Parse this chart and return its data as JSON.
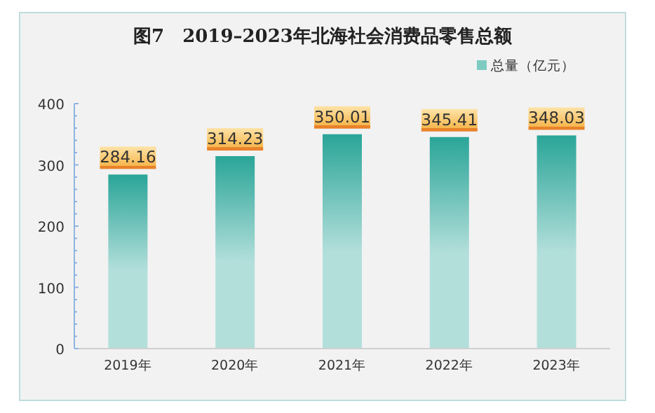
{
  "chart_data": {
    "type": "bar",
    "title": "图7　2019–2023年北海社会消费品零售总额",
    "categories": [
      "2019年",
      "2020年",
      "2021年",
      "2022年",
      "2023年"
    ],
    "series": [
      {
        "name": "总量（亿元）",
        "color": "#2aa598",
        "values": [
          284.16,
          314.23,
          350.01,
          345.41,
          348.03
        ]
      }
    ],
    "ylim": [
      0,
      400
    ],
    "yticks": [
      0,
      {
        "value": 20,
        "label": null
      },
      {
        "value": 40,
        "label": null
      },
      {
        "value": 60,
        "label": null
      },
      {
        "value": 80,
        "label": null
      },
      100,
      {
        "value": 120,
        "label": null
      },
      {
        "value": 140,
        "label": null
      },
      {
        "value": 160,
        "label": null
      },
      {
        "value": 180,
        "label": null
      },
      200,
      {
        "value": 220,
        "label": null
      },
      {
        "value": 240,
        "label": null
      },
      {
        "value": 260,
        "label": null
      },
      {
        "value": 280,
        "label": null
      },
      300,
      {
        "value": 320,
        "label": null
      },
      {
        "value": 340,
        "label": null
      },
      {
        "value": 360,
        "label": null
      },
      {
        "value": 380,
        "label": null
      },
      400
    ],
    "data_labels": true,
    "legend": "top right",
    "grid": false
  }
}
